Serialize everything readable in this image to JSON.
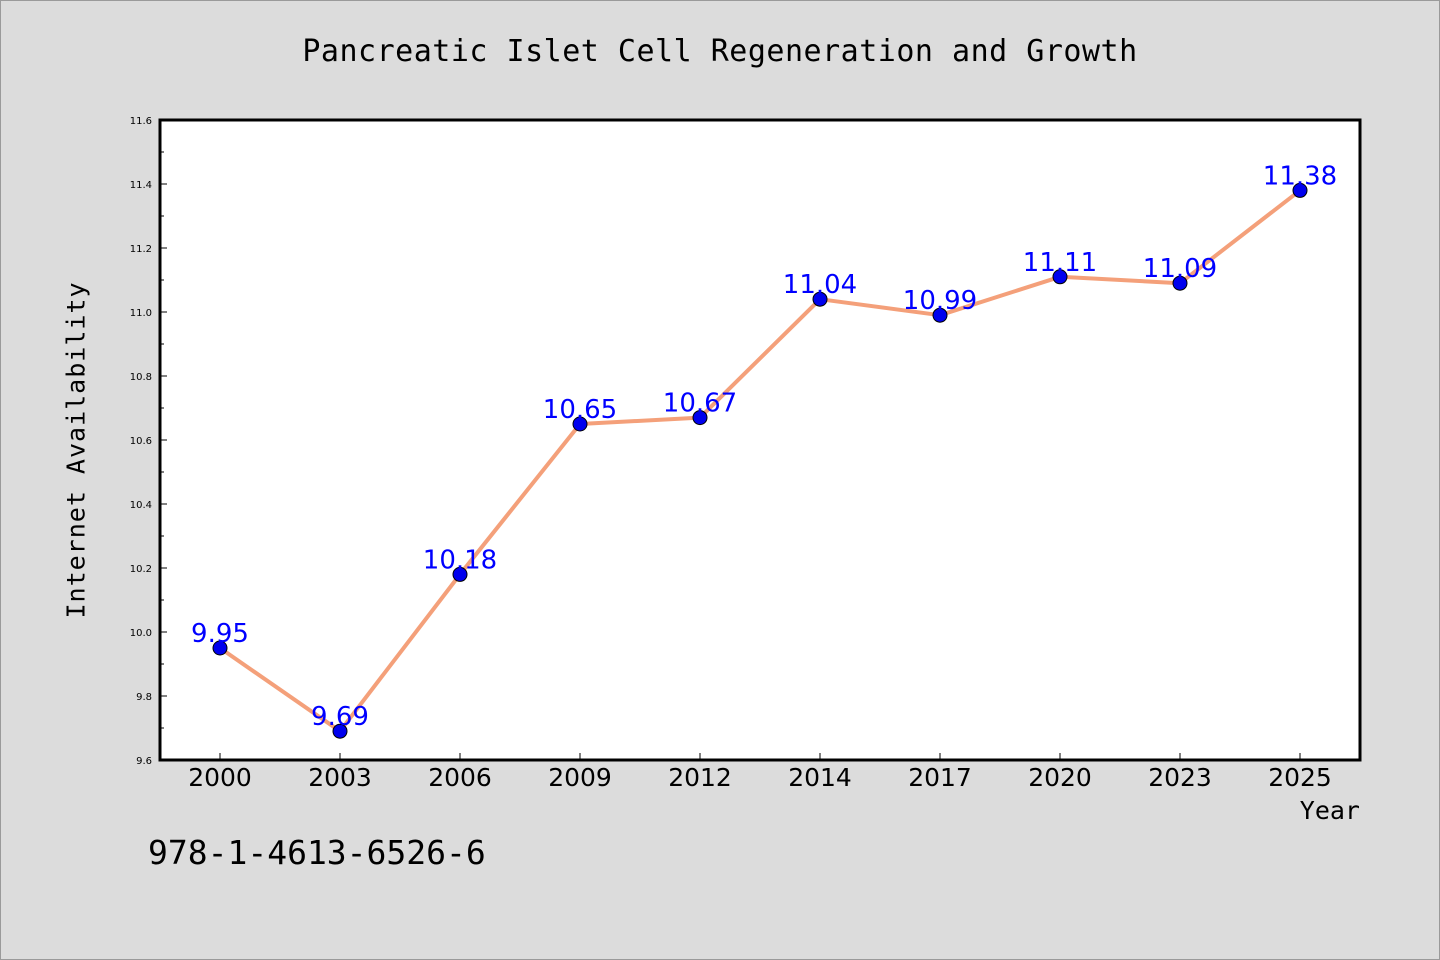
{
  "chart_data": {
    "type": "line",
    "title": "Pancreatic Islet Cell Regeneration and Growth",
    "xlabel": "Year",
    "ylabel": "Internet Availability",
    "categories": [
      "2000",
      "2003",
      "2006",
      "2009",
      "2012",
      "2014",
      "2017",
      "2020",
      "2023",
      "2025"
    ],
    "values": [
      9.95,
      9.69,
      10.18,
      10.65,
      10.67,
      11.04,
      10.99,
      11.11,
      11.09,
      11.38
    ],
    "ylim": [
      9.6,
      11.6
    ],
    "yticks": [
      "9.6",
      "9.8",
      "10.0",
      "10.2",
      "10.4",
      "10.6",
      "10.8",
      "11.0",
      "11.2",
      "11.4",
      "11.6"
    ],
    "grid": false,
    "legend": "none",
    "line_color": "#f4a07a",
    "marker_color": "#0000ee",
    "label_color": "#0000ff"
  },
  "footer": {
    "isbn": "978-1-4613-6526-6"
  }
}
